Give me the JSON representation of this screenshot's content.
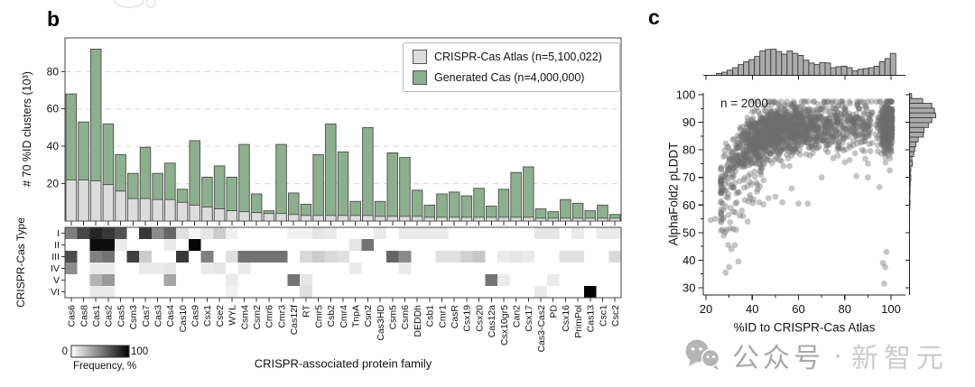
{
  "figure": {
    "panel_b_label": "b",
    "panel_c_label": "c",
    "panel_b": {
      "y_axis_title": "# 70 %ID clusters (10³)",
      "x_axis_title": "CRISPR-associated protein family",
      "heatmap_y_axis_title": "CRISPR-Cas Type",
      "colorbar": {
        "min_label": "0",
        "max_label": "100",
        "title": "Frequency, %"
      }
    },
    "panel_c": {
      "annotation": "n = 2000",
      "y_axis_title": "AlphaFold2 pLDDT",
      "x_axis_title": "%ID to CRISPR-Cas Atlas"
    },
    "legend": {
      "items": [
        {
          "label": "CRISPR-Cas Atlas (n=5,100,022)",
          "color": "#dcdcdc"
        },
        {
          "label": "Generated Cas (n=4,000,000)",
          "color": "#8cb08e"
        }
      ]
    },
    "watermark": {
      "icon": "wechat-icon",
      "text_bold": "公众号",
      "separator": "·",
      "text_light": "新智元"
    },
    "colors": {
      "atlas_gray": "#dcdcdc",
      "generated_green": "#8cb08e",
      "bar_stroke": "#4d4d4d",
      "grid": "#d6d6d6",
      "scatter_point": "#6e6e6e",
      "hist_fill": "#ababab",
      "hist_stroke": "#3d3d3d",
      "watermark_gray": "#b5b5b5"
    }
  },
  "chart_data": [
    {
      "id": "b_bar",
      "type": "bar",
      "title": "",
      "xlabel": "CRISPR-associated protein family",
      "ylabel": "# 70 %ID clusters (10³)",
      "ylim": [
        0,
        98
      ],
      "yticks": [
        20,
        40,
        60,
        80
      ],
      "grid": "horizontal dashed at yticks",
      "legend_position": "top-right inside",
      "overlay": "green bars drawn full height behind, gray bars overlaid in front",
      "categories": [
        "Cas6",
        "Cas8",
        "Cas1",
        "Cas2",
        "Cas5",
        "Csm3",
        "Cas7",
        "Cas3",
        "Cas4",
        "Cas10",
        "Cas9",
        "Csx1",
        "Cse2",
        "WYL",
        "Csm4",
        "Csm2",
        "Cmr6",
        "Cmr3",
        "Cas12f",
        "RT",
        "Cmr5",
        "Csb2",
        "Cmr4",
        "TnpA",
        "Csn2",
        "Cas3HD",
        "Csm5",
        "Csm6",
        "DEDDh",
        "Csb1",
        "Cmr1",
        "CasR",
        "Csx19",
        "Csx20",
        "Cas12a",
        "Csx10gr5",
        "Can2",
        "Csx17",
        "Cas3-Cas2",
        "PD",
        "Csx16",
        "PrimPol",
        "Cas13",
        "Csc1",
        "Csc2"
      ],
      "series": [
        {
          "name": "CRISPR-Cas Atlas (n=5,100,022)",
          "color": "#dcdcdc",
          "values": [
            22,
            22,
            21.5,
            19.5,
            16,
            12,
            12,
            11.5,
            11.5,
            10,
            8.5,
            7.5,
            6.5,
            5.5,
            5,
            4.5,
            4,
            4,
            3.5,
            3,
            3,
            3,
            3,
            3,
            3,
            2.5,
            2.5,
            2.5,
            2.5,
            2,
            2,
            2,
            2,
            2,
            2,
            2,
            2,
            2,
            1.5,
            1.5,
            1.5,
            1.5,
            1.5,
            1.5,
            1.5
          ]
        },
        {
          "name": "Generated Cas (n=4,000,000)",
          "color": "#8cb08e",
          "values": [
            68,
            53,
            92,
            52,
            35.5,
            25.5,
            39.5,
            25.5,
            31,
            17,
            43,
            23.5,
            29.5,
            23.5,
            41,
            14.5,
            5.5,
            41,
            15,
            9,
            35.5,
            52,
            37,
            10.5,
            50,
            10.5,
            36.5,
            34,
            16.5,
            8.5,
            14.5,
            15.5,
            13.5,
            17.5,
            8,
            17,
            26,
            29,
            6.5,
            5,
            11.5,
            9.5,
            5.5,
            8.5,
            3.5
          ]
        }
      ]
    },
    {
      "id": "b_heatmap",
      "type": "heatmap",
      "ylabel": "CRISPR-Cas Type",
      "rows": [
        "I",
        "II",
        "III",
        "IV",
        "V",
        "VI"
      ],
      "columns": [
        "Cas6",
        "Cas8",
        "Cas1",
        "Cas2",
        "Cas5",
        "Csm3",
        "Cas7",
        "Cas3",
        "Cas4",
        "Cas10",
        "Cas9",
        "Csx1",
        "Cse2",
        "WYL",
        "Csm4",
        "Csm2",
        "Cmr6",
        "Cmr3",
        "Cas12f",
        "RT",
        "Cmr5",
        "Csb2",
        "Cmr4",
        "TnpA",
        "Csn2",
        "Cas3HD",
        "Csm5",
        "Csm6",
        "DEDDh",
        "Csb1",
        "Cmr1",
        "CasR",
        "Csx19",
        "Csx20",
        "Cas12a",
        "Csx10gr5",
        "Can2",
        "Csx17",
        "Cas3-Cas2",
        "PD",
        "Csx16",
        "PrimPol",
        "Cas13",
        "Csc1",
        "Csc2"
      ],
      "colorscale": {
        "min": 0,
        "max": 100,
        "min_color": "#ffffff",
        "max_color": "#000000",
        "label": "Frequency, %"
      },
      "values": [
        [
          50,
          72,
          85,
          78,
          68,
          0,
          78,
          45,
          60,
          12,
          4,
          10,
          20,
          6,
          0,
          0,
          0,
          0,
          5,
          5,
          10,
          8,
          0,
          0,
          0,
          8,
          0,
          8,
          8,
          8,
          8,
          0,
          0,
          0,
          0,
          0,
          0,
          0,
          10,
          10,
          0,
          8,
          0,
          8,
          8
        ],
        [
          0,
          0,
          95,
          95,
          8,
          0,
          0,
          0,
          8,
          0,
          98,
          0,
          0,
          0,
          0,
          0,
          0,
          0,
          0,
          0,
          0,
          0,
          0,
          10,
          55,
          0,
          0,
          0,
          0,
          0,
          0,
          0,
          0,
          0,
          0,
          0,
          0,
          0,
          0,
          0,
          0,
          0,
          0,
          0,
          0
        ],
        [
          70,
          0,
          50,
          55,
          0,
          75,
          20,
          0,
          0,
          78,
          0,
          50,
          0,
          12,
          55,
          55,
          55,
          55,
          0,
          15,
          20,
          15,
          12,
          0,
          0,
          0,
          60,
          45,
          0,
          0,
          12,
          12,
          18,
          22,
          0,
          8,
          10,
          8,
          0,
          0,
          12,
          12,
          0,
          0,
          15
        ],
        [
          45,
          0,
          8,
          8,
          0,
          0,
          8,
          8,
          10,
          0,
          0,
          8,
          10,
          0,
          8,
          0,
          0,
          0,
          0,
          0,
          0,
          0,
          0,
          8,
          0,
          0,
          0,
          8,
          0,
          0,
          0,
          0,
          0,
          0,
          0,
          0,
          0,
          0,
          0,
          0,
          0,
          0,
          0,
          0,
          0
        ],
        [
          0,
          0,
          30,
          40,
          0,
          0,
          0,
          0,
          35,
          0,
          0,
          0,
          0,
          8,
          0,
          0,
          0,
          0,
          55,
          10,
          0,
          0,
          0,
          0,
          0,
          0,
          0,
          0,
          0,
          0,
          0,
          0,
          0,
          0,
          55,
          8,
          0,
          0,
          0,
          8,
          0,
          0,
          0,
          0,
          0
        ],
        [
          0,
          0,
          8,
          8,
          0,
          0,
          0,
          0,
          0,
          0,
          0,
          0,
          0,
          5,
          0,
          0,
          0,
          0,
          0,
          12,
          0,
          0,
          0,
          0,
          0,
          0,
          0,
          0,
          0,
          0,
          0,
          0,
          0,
          0,
          0,
          0,
          0,
          0,
          8,
          0,
          0,
          0,
          100,
          0,
          0
        ]
      ]
    },
    {
      "id": "c_scatter",
      "type": "scatter",
      "annotation": "n = 2000",
      "n_points": 2000,
      "xlabel": "%ID to CRISPR-Cas Atlas",
      "ylabel": "AlphaFold2 pLDDT",
      "xlim": [
        20,
        103
      ],
      "ylim": [
        28,
        103
      ],
      "xticks": [
        20,
        40,
        60,
        80,
        100
      ],
      "yticks": [
        30,
        40,
        50,
        60,
        70,
        80,
        90,
        100
      ],
      "point_color": "#6e6e6e",
      "point_opacity": 0.4,
      "trend": "pLDDT rises steeply from ~55 at 28 %ID to a plateau of ~82-97 above 45 %ID; sparse low-pLDDT tail at 28-40 %ID reaching 31, and a few outliers near 96-99 %ID with pLDDT 31-43",
      "outlier_points": [
        [
          22,
          54.5
        ],
        [
          24,
          55
        ],
        [
          27.5,
          55.5
        ],
        [
          28.5,
          35.5
        ],
        [
          30,
          37.5
        ],
        [
          34,
          39.5
        ],
        [
          31,
          44
        ],
        [
          32.5,
          45.5
        ],
        [
          29,
          51
        ],
        [
          30.5,
          51.5
        ],
        [
          33,
          51
        ],
        [
          36,
          56
        ],
        [
          38,
          54
        ],
        [
          35.5,
          58
        ],
        [
          40.5,
          62
        ],
        [
          43,
          61
        ],
        [
          47,
          62.5
        ],
        [
          50,
          63
        ],
        [
          53,
          61
        ],
        [
          57,
          66
        ],
        [
          60,
          60.5
        ],
        [
          64,
          60.5
        ],
        [
          70,
          70
        ],
        [
          75,
          77
        ],
        [
          80,
          75.5
        ],
        [
          85,
          70.5
        ],
        [
          90,
          70
        ],
        [
          95,
          66.5
        ],
        [
          96.5,
          39
        ],
        [
          97,
          31.5
        ],
        [
          97.5,
          37.5
        ],
        [
          98,
          43
        ]
      ],
      "generator": {
        "seed": 20240422,
        "plateau_mean": 89,
        "plateau_drop": 34,
        "rise_scale": 10,
        "noise_sd": 4.6
      },
      "top_histogram": {
        "bin_start": 24.5,
        "bin_width": 2.35,
        "heights": [
          0.07,
          0.12,
          0.2,
          0.29,
          0.41,
          0.52,
          0.6,
          0.72,
          0.93,
          0.99,
          1.0,
          0.91,
          0.81,
          0.93,
          0.84,
          0.76,
          0.58,
          0.47,
          0.41,
          0.49,
          0.47,
          0.29,
          0.33,
          0.35,
          0.29,
          0.17,
          0.23,
          0.26,
          0.29,
          0.35,
          0.52,
          0.64,
          0.84
        ]
      },
      "right_histogram": {
        "bin_start": 99.5,
        "bin_width": 1.75,
        "heights": [
          0.08,
          0.5,
          0.85,
          0.95,
          1.0,
          0.85,
          0.72,
          0.55,
          0.53,
          0.33,
          0.24,
          0.2,
          0.16,
          0.09,
          0.11,
          0.05,
          0.04,
          0.05,
          0.03,
          0.02,
          0.02,
          0.01,
          0.02,
          0.01
        ]
      }
    }
  ]
}
